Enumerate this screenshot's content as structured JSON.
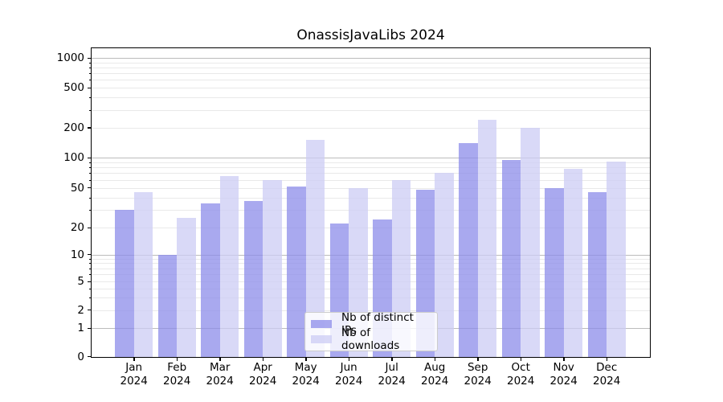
{
  "chart_data": {
    "type": "bar",
    "title": "OnassisJavaLibs 2024",
    "categories": [
      "Jan",
      "Feb",
      "Mar",
      "Apr",
      "May",
      "Jun",
      "Jul",
      "Aug",
      "Sep",
      "Oct",
      "Nov",
      "Dec"
    ],
    "x_year": "2024",
    "series": [
      {
        "name": "Nb of distinct IPs",
        "color": "#8c8cea",
        "values": [
          30,
          10,
          35,
          37,
          51,
          22,
          24,
          48,
          140,
          94,
          50,
          45
        ]
      },
      {
        "name": "Nb of downloads",
        "color": "#ccccf4",
        "values": [
          45,
          25,
          65,
          60,
          150,
          50,
          60,
          71,
          240,
          200,
          77,
          92
        ]
      }
    ],
    "xlabel": "",
    "ylabel": "",
    "yscale": "symlog",
    "yticks": [
      0,
      1,
      2,
      5,
      10,
      20,
      50,
      100,
      200,
      500,
      1000
    ],
    "ylim": [
      0,
      1000
    ],
    "grid": "horizontal, major and minor log gridlines",
    "legend_position": "lower center"
  }
}
